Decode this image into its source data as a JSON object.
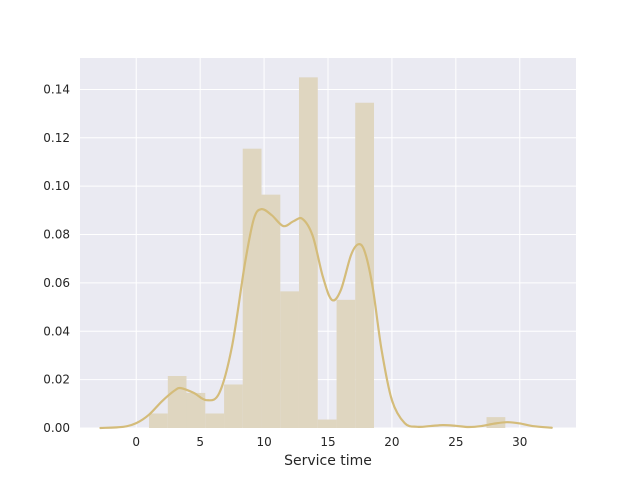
{
  "chart_data": {
    "type": "histogram",
    "title": "",
    "xlabel": "Service time",
    "ylabel": "",
    "xlim": [
      -4.4,
      34.4
    ],
    "ylim": [
      0,
      0.153
    ],
    "grid": true,
    "legend": "none",
    "x_ticks": [
      0,
      5,
      10,
      15,
      20,
      25,
      30
    ],
    "x_tick_labels": [
      "0",
      "5",
      "10",
      "15",
      "20",
      "25",
      "30"
    ],
    "y_ticks": [
      0.0,
      0.02,
      0.04,
      0.06,
      0.08,
      0.1,
      0.12,
      0.14
    ],
    "y_tick_labels": [
      "0.00",
      "0.02",
      "0.04",
      "0.06",
      "0.08",
      "0.10",
      "0.12",
      "0.14"
    ],
    "colors": {
      "background": "#eaeaf2",
      "grid": "#ffffff",
      "bars": "#dfd6c0",
      "kde": "#d4bc7a",
      "text": "#262626"
    },
    "histogram": {
      "bin_edges": [
        1.0,
        2.47,
        3.93,
        5.4,
        6.87,
        8.33,
        9.8,
        11.27,
        12.73,
        14.2,
        15.67,
        17.13,
        18.6,
        20.07,
        21.53,
        23.0,
        24.47,
        25.93,
        27.4,
        28.87
      ],
      "densities": [
        0.006,
        0.0215,
        0.0145,
        0.006,
        0.018,
        0.1155,
        0.0965,
        0.0565,
        0.145,
        0.0035,
        0.053,
        0.1345,
        0,
        0,
        0,
        0,
        0,
        0,
        0.0045
      ]
    },
    "kde": {
      "x": [
        -2.8,
        -1.0,
        0.0,
        1.0,
        2.0,
        3.0,
        3.5,
        4.5,
        5.5,
        6.5,
        7.5,
        8.5,
        9.2,
        9.8,
        10.6,
        11.5,
        12.3,
        13.0,
        13.8,
        14.6,
        15.3,
        16.0,
        16.8,
        17.4,
        17.9,
        18.5,
        19.2,
        20.0,
        21.0,
        22.0,
        23.0,
        24.0,
        25.0,
        26.0,
        27.0,
        28.0,
        29.0,
        30.0,
        31.0,
        32.5
      ],
      "y": [
        0.0,
        0.0005,
        0.002,
        0.0055,
        0.011,
        0.0155,
        0.0165,
        0.0145,
        0.0115,
        0.0145,
        0.034,
        0.068,
        0.0865,
        0.0905,
        0.088,
        0.0835,
        0.0855,
        0.0865,
        0.0795,
        0.0625,
        0.053,
        0.057,
        0.0715,
        0.076,
        0.0725,
        0.058,
        0.032,
        0.0115,
        0.002,
        0.0005,
        0.0008,
        0.0012,
        0.0009,
        0.0004,
        0.0008,
        0.0018,
        0.0024,
        0.0019,
        0.0008,
        0.0001
      ]
    }
  }
}
